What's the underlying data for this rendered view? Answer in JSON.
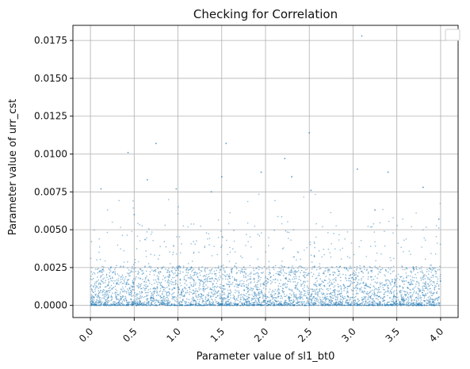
{
  "chart_data": {
    "type": "scatter",
    "title": "Checking for Correlation",
    "xlabel": "Parameter value of sl1_bt0",
    "ylabel": "Parameter value of urr_cst",
    "xlim": [
      -0.2,
      4.2
    ],
    "ylim": [
      -0.0008,
      0.0185
    ],
    "xticks": [
      0.0,
      0.5,
      1.0,
      1.5,
      2.0,
      2.5,
      3.0,
      3.5,
      4.0
    ],
    "xtick_labels": [
      "0.0",
      "0.5",
      "1.0",
      "1.5",
      "2.0",
      "2.5",
      "3.0",
      "3.5",
      "4.0"
    ],
    "yticks": [
      0.0,
      0.0025,
      0.005,
      0.0075,
      0.01,
      0.0125,
      0.015,
      0.0175
    ],
    "ytick_labels": [
      "0.0000",
      "0.0025",
      "0.0050",
      "0.0075",
      "0.0100",
      "0.0125",
      "0.0150",
      "0.0175"
    ],
    "grid": true,
    "legend": "top-right, empty",
    "point_color": "#1f77b4",
    "point_alpha": 0.5,
    "x_range_of_points": [
      0.0,
      4.0
    ],
    "bulk_y_range": [
      0.0,
      0.0025
    ],
    "notable_points": [
      {
        "x": 0.12,
        "y": 0.0077
      },
      {
        "x": 0.43,
        "y": 0.0101
      },
      {
        "x": 0.5,
        "y": 0.006
      },
      {
        "x": 0.65,
        "y": 0.0083
      },
      {
        "x": 0.75,
        "y": 0.0107
      },
      {
        "x": 0.98,
        "y": 0.0077
      },
      {
        "x": 1.38,
        "y": 0.0075
      },
      {
        "x": 1.5,
        "y": 0.0085
      },
      {
        "x": 1.55,
        "y": 0.0107
      },
      {
        "x": 1.95,
        "y": 0.0088
      },
      {
        "x": 2.22,
        "y": 0.0097
      },
      {
        "x": 2.3,
        "y": 0.0085
      },
      {
        "x": 2.5,
        "y": 0.0114
      },
      {
        "x": 2.52,
        "y": 0.0076
      },
      {
        "x": 3.05,
        "y": 0.009
      },
      {
        "x": 3.1,
        "y": 0.0178
      },
      {
        "x": 3.25,
        "y": 0.0063
      },
      {
        "x": 3.4,
        "y": 0.0088
      },
      {
        "x": 3.8,
        "y": 0.0078
      },
      {
        "x": 3.98,
        "y": 0.0057
      }
    ]
  }
}
